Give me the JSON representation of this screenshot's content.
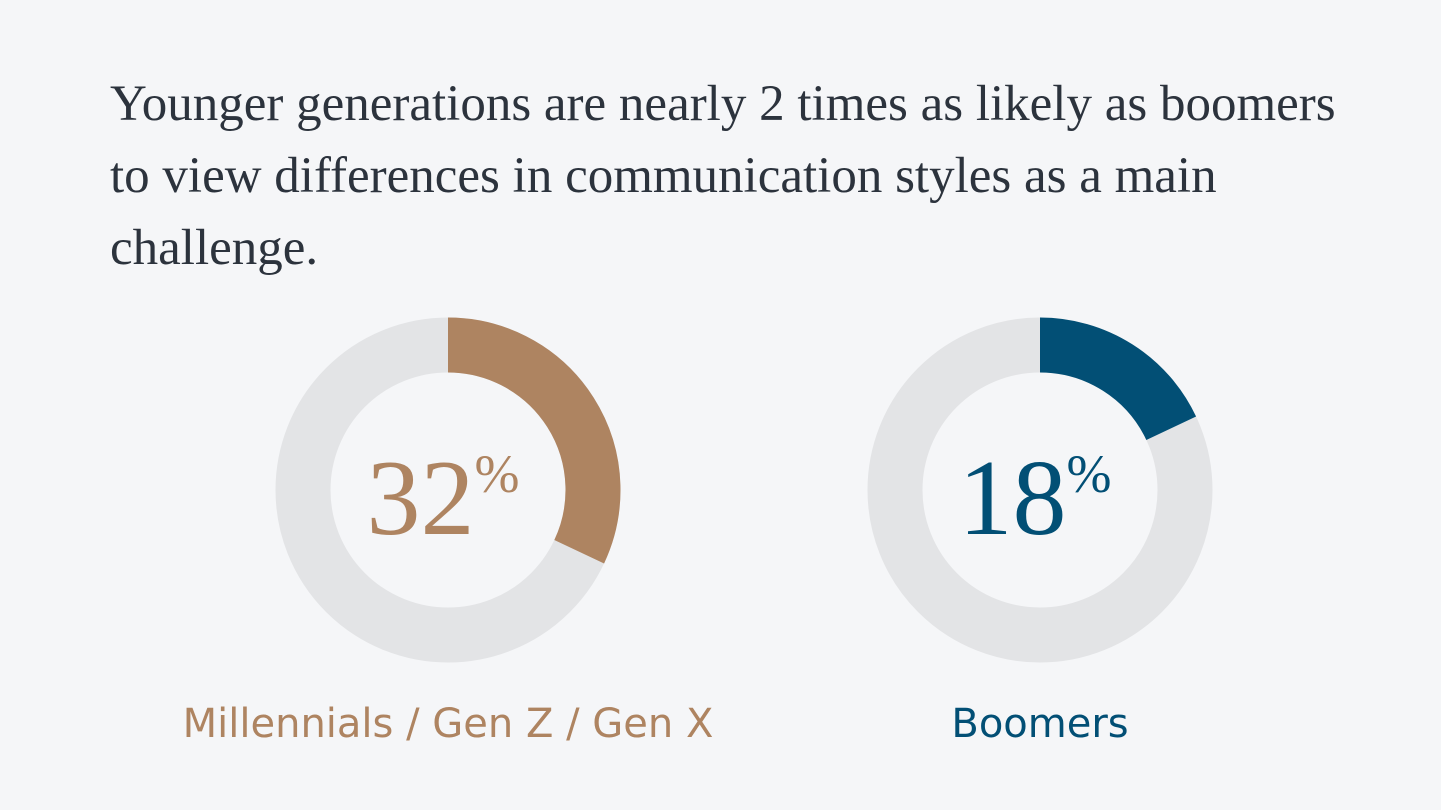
{
  "title": "Younger generations are nearly 2 times as likely as boomers to view differences in communication styles as a main challenge.",
  "chart_data": [
    {
      "type": "donut",
      "label": "Millennials / Gen Z / Gen X",
      "values": [
        32
      ],
      "value_labels": [
        "32%"
      ],
      "color": "#ae8461",
      "ylim": [
        0,
        100
      ]
    },
    {
      "type": "donut",
      "label": "Boomers",
      "values": [
        18
      ],
      "value_labels": [
        "18%"
      ],
      "color": "#024f75",
      "ylim": [
        0,
        100
      ]
    }
  ]
}
